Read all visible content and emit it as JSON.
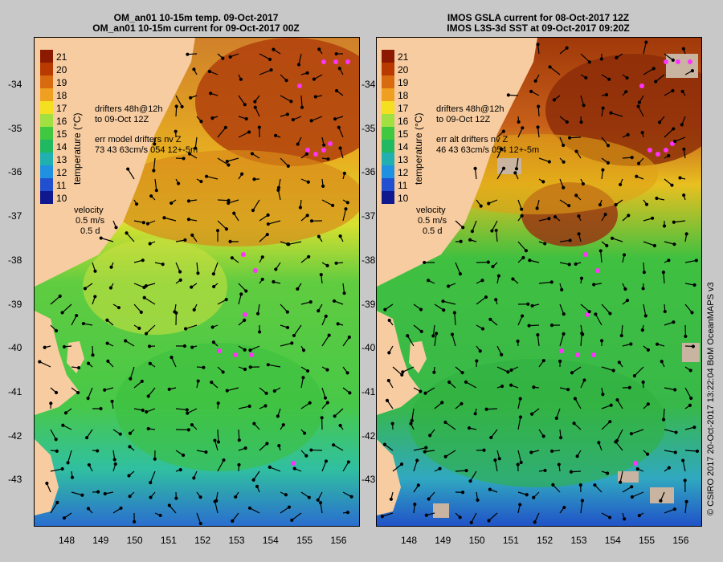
{
  "left": {
    "title_line1": "OM_an01 10-15m temp. 09-Oct-2017",
    "title_line2": "OM_an01 10-15m current for 09-Oct-2017 00Z",
    "drifters_line1": "drifters 48h@12h",
    "drifters_line2": "to 09-Oct 12Z",
    "err_line1": "err model drifters nv Z",
    "err_line2": "73 43 63cm/s 054 12+-5m"
  },
  "right": {
    "title_line1": "IMOS GSLA current for 08-Oct-2017 12Z",
    "title_line2": "IMOS L3S-3d SST at 09-Oct-2017 09:20Z",
    "drifters_line1": "drifters 48h@12h",
    "drifters_line2": "to 09-Oct 12Z",
    "err_line1": "err alt drifters nv Z",
    "err_line2": "46 43 63cm/s 054 12+-5m"
  },
  "velocity": {
    "label": "velocity",
    "speed": "0.5 m/s",
    "duration": "0.5 d"
  },
  "colorbar": {
    "title": "temperature (°C)",
    "ticks": [
      "21",
      "20",
      "19",
      "18",
      "17",
      "16",
      "15",
      "14",
      "13",
      "12",
      "11",
      "10"
    ],
    "colors": [
      "#8b1a00",
      "#b83a00",
      "#d86a10",
      "#f0a020",
      "#f4e020",
      "#a0e040",
      "#40c840",
      "#20b860",
      "#20b0b0",
      "#2090e0",
      "#2050d0",
      "#101890"
    ]
  },
  "lat_ticks": [
    "-34",
    "-35",
    "-36",
    "-37",
    "-38",
    "-39",
    "-40",
    "-41",
    "-42",
    "-43"
  ],
  "lon_ticks": [
    "148",
    "149",
    "150",
    "151",
    "152",
    "153",
    "154",
    "155",
    "156"
  ],
  "credit": "© CSIRO 2017   20-Oct-2017 13:22:04 BoM OceanMAPS v3",
  "colors": {
    "land": "#f7cca0",
    "warm": "#c04a10",
    "mid": "#e8b020",
    "green": "#48c840",
    "teal": "#30c0a0",
    "cold": "#2a6cd0",
    "drifter": "#ff33ff"
  }
}
